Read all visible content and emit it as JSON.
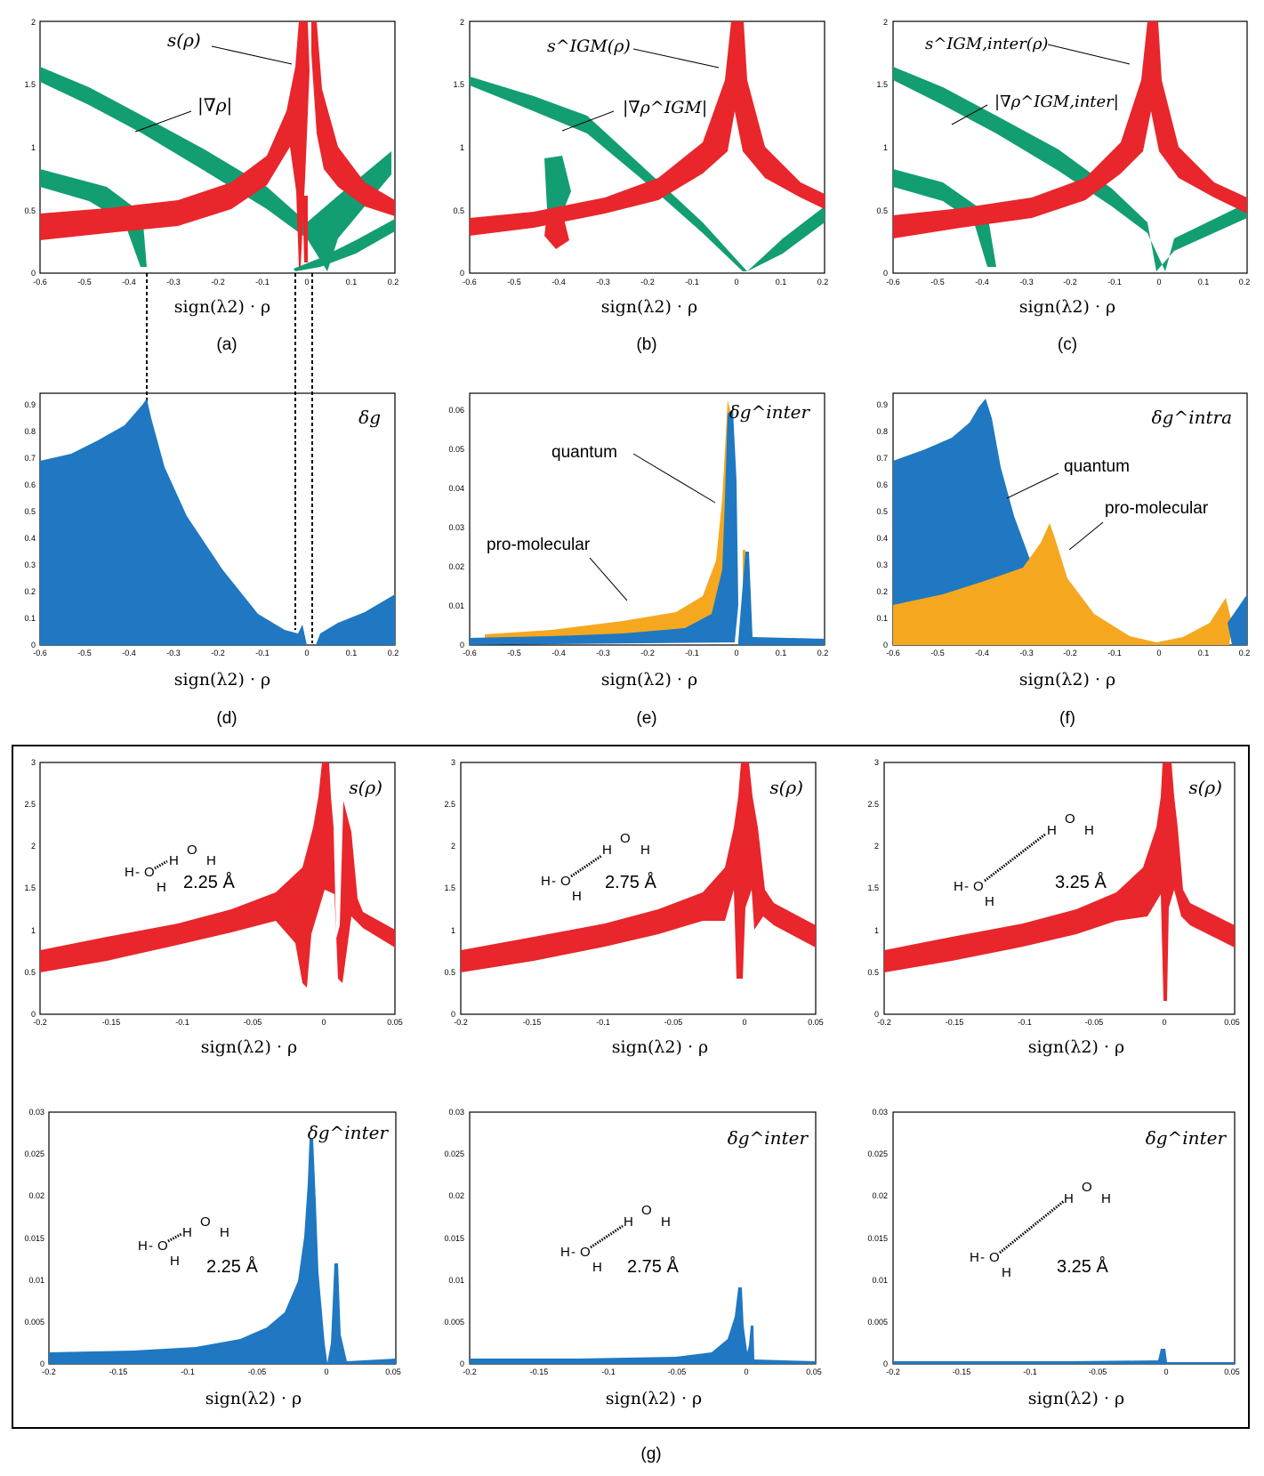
{
  "colors": {
    "red": "#e8262b",
    "green": "#139d72",
    "blue": "#1f78c1",
    "orange": "#f5a81f"
  },
  "chart_data": [
    {
      "id": "a",
      "type": "scatter",
      "panel_label": "(a)",
      "xlabel": "sign(λ2) · ρ",
      "xlim": [
        -0.6,
        0.2
      ],
      "ylim": [
        0,
        2
      ],
      "xticks": [
        "-0.6",
        "-0.5",
        "-0.4",
        "-0.3",
        "-0.2",
        "-0.1",
        "0",
        "0.1",
        "0.2"
      ],
      "yticks": [
        "0",
        "0.5",
        "1",
        "1.5",
        "2"
      ],
      "series": [
        {
          "name": "s(ρ)",
          "color": "red"
        },
        {
          "name": "|∇ρ|",
          "color": "green"
        }
      ],
      "annotations": [
        {
          "text": "s(ρ)",
          "points_to": [
            0,
            1.7
          ]
        },
        {
          "text": "|∇ρ|",
          "points_to": [
            -0.55,
            1.15
          ]
        }
      ]
    },
    {
      "id": "b",
      "type": "scatter",
      "panel_label": "(b)",
      "xlabel": "sign(λ2) · ρ",
      "xlim": [
        -0.6,
        0.2
      ],
      "ylim": [
        0,
        2
      ],
      "xticks": [
        "-0.6",
        "-0.5",
        "-0.4",
        "-0.3",
        "-0.2",
        "-0.1",
        "0",
        "0.1",
        "0.2"
      ],
      "yticks": [
        "0",
        "0.5",
        "1",
        "1.5",
        "2"
      ],
      "series": [
        {
          "name": "s^IGM(ρ)",
          "color": "red"
        },
        {
          "name": "|∇ρ^IGM|",
          "color": "green"
        }
      ],
      "annotations": [
        {
          "text": "s^IGM(ρ)",
          "points_to": [
            -0.01,
            1.65
          ]
        },
        {
          "text": "|∇ρ^IGM|",
          "points_to": [
            -0.4,
            1.15
          ]
        }
      ]
    },
    {
      "id": "c",
      "type": "scatter",
      "panel_label": "(c)",
      "xlabel": "sign(λ2) · ρ",
      "xlim": [
        -0.6,
        0.2
      ],
      "ylim": [
        0,
        2
      ],
      "xticks": [
        "-0.6",
        "-0.5",
        "-0.4",
        "-0.3",
        "-0.2",
        "-0.1",
        "0",
        "0.1",
        "0.2"
      ],
      "yticks": [
        "0",
        "0.5",
        "1",
        "1.5",
        "2"
      ],
      "series": [
        {
          "name": "s^IGM,inter(ρ)",
          "color": "red"
        },
        {
          "name": "|∇ρ^IGM,inter|",
          "color": "green"
        }
      ],
      "annotations": [
        {
          "text": "s^IGM,inter(ρ)",
          "points_to": [
            -0.03,
            1.65
          ]
        },
        {
          "text": "|∇ρ^IGM,inter|",
          "points_to": [
            -0.52,
            1.2
          ]
        }
      ]
    },
    {
      "id": "d",
      "type": "scatter",
      "panel_label": "(d)",
      "xlabel": "sign(λ2) · ρ",
      "xlim": [
        -0.6,
        0.2
      ],
      "ylim": [
        0,
        0.95
      ],
      "xticks": [
        "-0.6",
        "-0.5",
        "-0.4",
        "-0.3",
        "-0.2",
        "-0.1",
        "0",
        "0.1",
        "0.2"
      ],
      "yticks": [
        "0",
        "0.1",
        "0.2",
        "0.3",
        "0.4",
        "0.5",
        "0.6",
        "0.7",
        "0.8",
        "0.9"
      ],
      "series": [
        {
          "name": "δg",
          "color": "blue"
        }
      ]
    },
    {
      "id": "e",
      "type": "scatter",
      "panel_label": "(e)",
      "xlabel": "sign(λ2) · ρ",
      "xlim": [
        -0.6,
        0.2
      ],
      "ylim": [
        0,
        0.065
      ],
      "xticks": [
        "-0.6",
        "-0.5",
        "-0.4",
        "-0.3",
        "-0.2",
        "-0.1",
        "0",
        "0.1",
        "0.2"
      ],
      "yticks": [
        "0",
        "0.01",
        "0.02",
        "0.03",
        "0.04",
        "0.05",
        "0.06"
      ],
      "series": [
        {
          "name": "δg^inter",
          "color": "blue"
        }
      ],
      "annotations": [
        {
          "text": "quantum",
          "points_to": [
            -0.03,
            0.038
          ]
        },
        {
          "text": "pro-molecular",
          "points_to": [
            -0.19,
            0.011
          ]
        }
      ]
    },
    {
      "id": "f",
      "type": "scatter",
      "panel_label": "(f)",
      "xlabel": "sign(λ2) · ρ",
      "xlim": [
        -0.6,
        0.2
      ],
      "ylim": [
        0,
        0.95
      ],
      "xticks": [
        "-0.6",
        "-0.5",
        "-0.4",
        "-0.3",
        "-0.2",
        "-0.1",
        "0",
        "0.1",
        "0.2"
      ],
      "yticks": [
        "0",
        "0.1",
        "0.2",
        "0.3",
        "0.4",
        "0.5",
        "0.6",
        "0.7",
        "0.8",
        "0.9"
      ],
      "series": [
        {
          "name": "δg^intra",
          "color": "blue"
        }
      ],
      "annotations": [
        {
          "text": "quantum",
          "points_to": [
            -0.33,
            0.55
          ]
        },
        {
          "text": "pro-molecular",
          "points_to": [
            -0.2,
            0.35
          ]
        }
      ]
    },
    {
      "id": "g1",
      "type": "scatter",
      "xlabel": "sign(λ2) · ρ",
      "xlim": [
        -0.2,
        0.05
      ],
      "ylim": [
        0,
        3
      ],
      "xticks": [
        "-0.2",
        "-0.15",
        "-0.1",
        "-0.05",
        "0",
        "0.05"
      ],
      "yticks": [
        "0",
        "0.5",
        "1",
        "1.5",
        "2",
        "2.5",
        "3"
      ],
      "series": [
        {
          "name": "s(ρ)",
          "color": "red"
        }
      ],
      "distance": "2.25 Å"
    },
    {
      "id": "g2",
      "type": "scatter",
      "xlabel": "sign(λ2) · ρ",
      "xlim": [
        -0.2,
        0.05
      ],
      "ylim": [
        0,
        3
      ],
      "xticks": [
        "-0.2",
        "-0.15",
        "-0.1",
        "-0.05",
        "0",
        "0.05"
      ],
      "yticks": [
        "0",
        "0.5",
        "1",
        "1.5",
        "2",
        "2.5",
        "3"
      ],
      "series": [
        {
          "name": "s(ρ)",
          "color": "red"
        }
      ],
      "distance": "2.75 Å"
    },
    {
      "id": "g3",
      "type": "scatter",
      "xlabel": "sign(λ2) · ρ",
      "xlim": [
        -0.2,
        0.05
      ],
      "ylim": [
        0,
        3
      ],
      "xticks": [
        "-0.2",
        "-0.15",
        "-0.1",
        "-0.05",
        "0",
        "0.05"
      ],
      "yticks": [
        "0",
        "0.5",
        "1",
        "1.5",
        "2",
        "2.5",
        "3"
      ],
      "series": [
        {
          "name": "s(ρ)",
          "color": "red"
        }
      ],
      "distance": "3.25 Å"
    },
    {
      "id": "g4",
      "type": "scatter",
      "xlabel": "sign(λ2) · ρ",
      "xlim": [
        -0.2,
        0.05
      ],
      "ylim": [
        0,
        0.03
      ],
      "xticks": [
        "-0.2",
        "-0.15",
        "-0.1",
        "-0.05",
        "0",
        "0.05"
      ],
      "yticks": [
        "0",
        "0.005",
        "0.01",
        "0.015",
        "0.02",
        "0.025",
        "0.03"
      ],
      "series": [
        {
          "name": "δg^inter",
          "color": "blue",
          "peak": [
            -0.013,
            0.027
          ]
        }
      ],
      "distance": "2.25 Å"
    },
    {
      "id": "g5",
      "type": "scatter",
      "xlabel": "sign(λ2) · ρ",
      "xlim": [
        -0.2,
        0.05
      ],
      "ylim": [
        0,
        0.03
      ],
      "xticks": [
        "-0.2",
        "-0.15",
        "-0.1",
        "-0.05",
        "0",
        "0.05"
      ],
      "yticks": [
        "0",
        "0.005",
        "0.01",
        "0.015",
        "0.02",
        "0.025",
        "0.03"
      ],
      "series": [
        {
          "name": "δg^inter",
          "color": "blue",
          "peak": [
            -0.005,
            0.0092
          ]
        }
      ],
      "distance": "2.75 Å"
    },
    {
      "id": "g6",
      "type": "scatter",
      "xlabel": "sign(λ2) · ρ",
      "xlim": [
        -0.2,
        0.05
      ],
      "ylim": [
        0,
        0.03
      ],
      "xticks": [
        "-0.2",
        "-0.15",
        "-0.1",
        "-0.05",
        "0",
        "0.05"
      ],
      "yticks": [
        "0",
        "0.005",
        "0.01",
        "0.015",
        "0.02",
        "0.025",
        "0.03"
      ],
      "series": [
        {
          "name": "δg^inter",
          "color": "blue",
          "peak": [
            -0.002,
            0.0019
          ]
        }
      ],
      "distance": "3.25 Å"
    }
  ],
  "group_label": "(g)",
  "molecule": {
    "h": "H",
    "o": "O",
    "dash": "-"
  }
}
